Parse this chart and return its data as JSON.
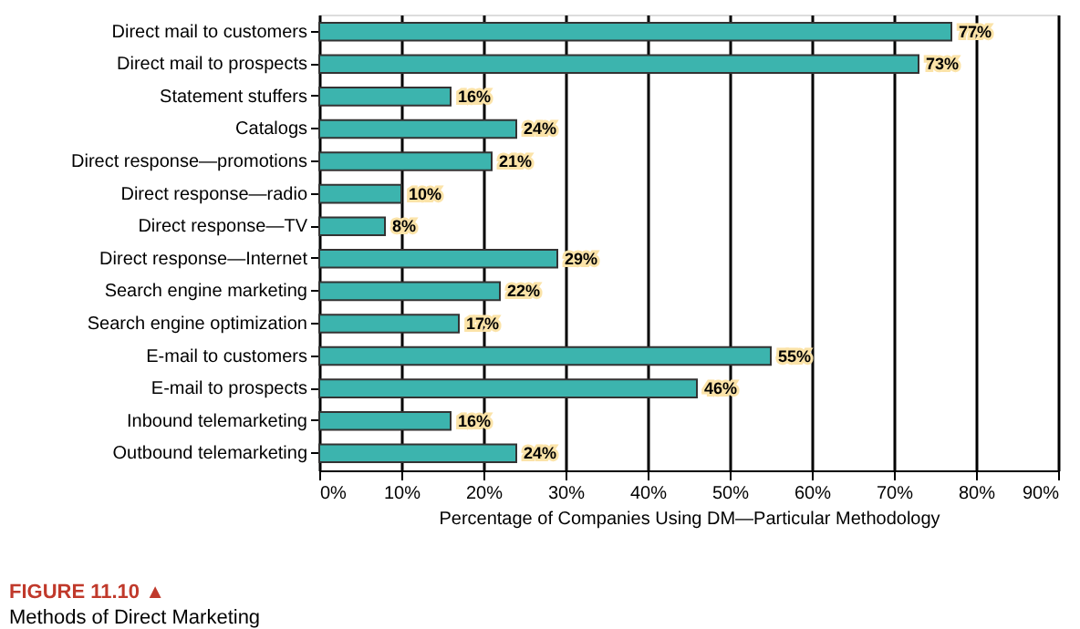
{
  "chart_data": {
    "type": "bar",
    "orientation": "horizontal",
    "title": "FIGURE 11.10 ▲",
    "subtitle": "Methods of Direct Marketing",
    "xlabel": "Percentage of Companies Using DM—Particular Methodology",
    "categories": [
      "Direct mail to customers",
      "Direct mail to prospects",
      "Statement stuffers",
      "Catalogs",
      "Direct response—promotions",
      "Direct response—radio",
      "Direct response—TV",
      "Direct response—Internet",
      "Search engine marketing",
      "Search engine optimization",
      "E-mail to customers",
      "E-mail to prospects",
      "Inbound telemarketing",
      "Outbound telemarketing"
    ],
    "values": [
      77,
      73,
      16,
      24,
      21,
      10,
      8,
      29,
      22,
      17,
      55,
      46,
      16,
      24
    ],
    "value_labels": [
      "77%",
      "73%",
      "16%",
      "24%",
      "21%",
      "10%",
      "8%",
      "29%",
      "22%",
      "17%",
      "55%",
      "46%",
      "16%",
      "24%"
    ],
    "color": "#3cb4ae",
    "xlim": [
      0,
      90
    ],
    "xticks": [
      {
        "value": 0,
        "label": "0%"
      },
      {
        "value": 10,
        "label": "10%"
      },
      {
        "value": 20,
        "label": "20%"
      },
      {
        "value": 30,
        "label": "30%"
      },
      {
        "value": 40,
        "label": "40%"
      },
      {
        "value": 50,
        "label": "50%"
      },
      {
        "value": 60,
        "label": "60%"
      },
      {
        "value": 70,
        "label": "70%"
      },
      {
        "value": 80,
        "label": "80%"
      },
      {
        "value": 90,
        "label": "90%"
      }
    ],
    "grid": "x"
  }
}
